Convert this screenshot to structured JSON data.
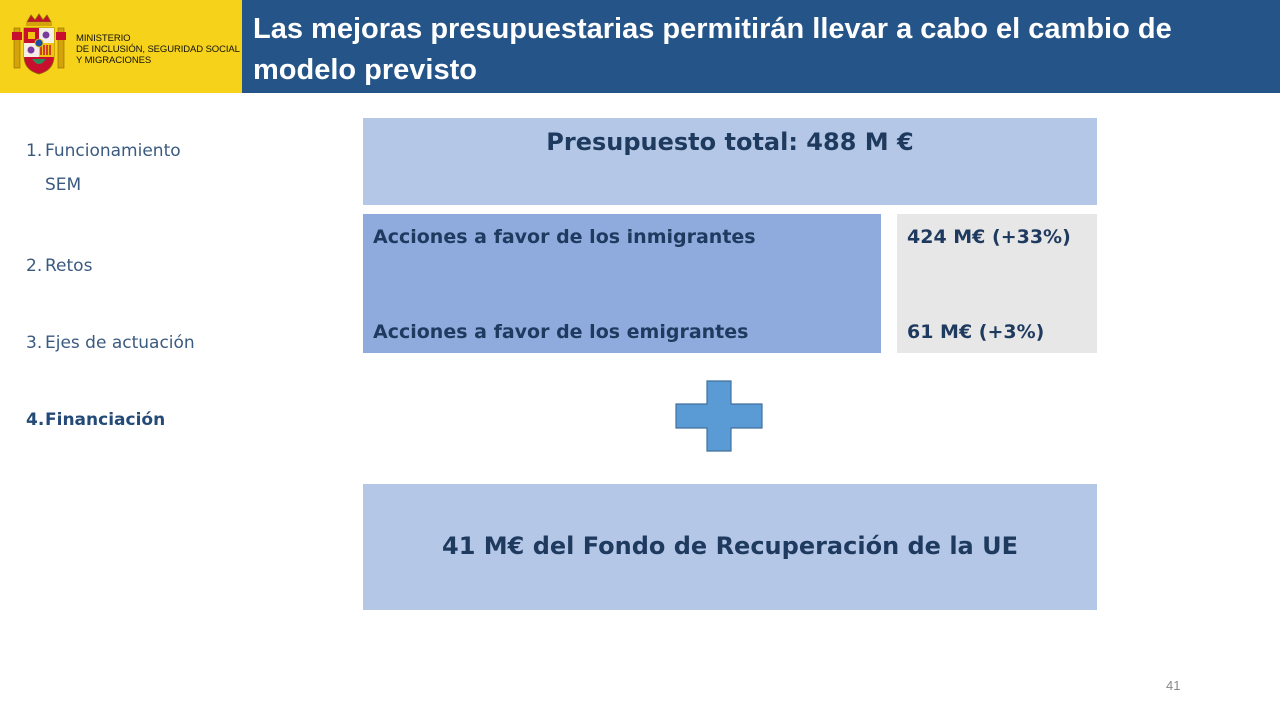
{
  "header": {
    "ministry_lines": [
      "MINISTERIO",
      "DE INCLUSIÓN, SEGURIDAD SOCIAL",
      "Y MIGRACIONES"
    ],
    "title": "Las mejoras presupuestarias permitirán llevar a cabo el cambio de modelo previsto",
    "title_bar_color": "#245488",
    "logo_bg_color": "#f6d21a"
  },
  "nav": {
    "items": [
      {
        "number": "1.",
        "label": "Funcionamiento",
        "label_cont": "SEM",
        "active": false
      },
      {
        "number": "2.",
        "label": "Retos",
        "active": false
      },
      {
        "number": "3.",
        "label": "Ejes de actuación",
        "active": false
      },
      {
        "number": "4.",
        "label": "Financiación",
        "active": true
      }
    ]
  },
  "budget": {
    "total": "Presupuesto total: 488 M €",
    "rows": [
      {
        "label": "Acciones a favor de los inmigrantes",
        "amount": "424 M€ (+33%)"
      },
      {
        "label": "Acciones a favor de los emigrantes",
        "amount": "61 M€ (+3%)"
      }
    ],
    "fund": "41 M€ del Fondo de Recuperación de la UE",
    "plus_icon": "plus-icon"
  },
  "colors": {
    "light_blue": "#b4c7e7",
    "mid_blue": "#8faadc",
    "grey": "#e7e7e7",
    "plus": "#5b9bd5"
  },
  "page": {
    "number": "41"
  }
}
